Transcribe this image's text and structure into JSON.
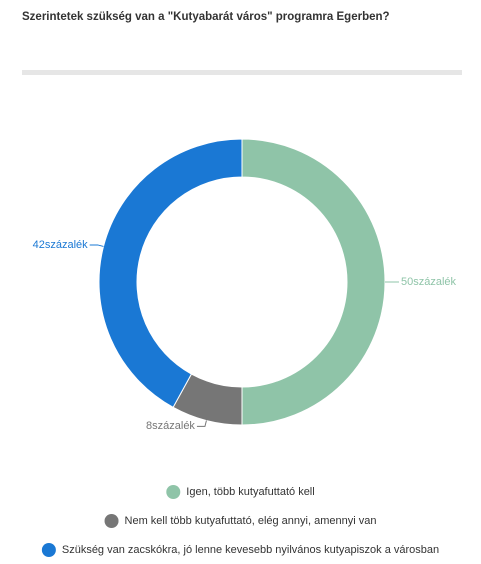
{
  "chart_data": {
    "type": "pie",
    "title": "Szerintetek szükség van a \"Kutyabarát város\" programra Egerben?",
    "categories": [
      "Igen, több kutyafuttató kell",
      "Nem kell több kutyafuttató, elég annyi, amennyi van",
      "Szükség van zacskókra, jó lenne kevesebb nyilvános kutyapiszok a városban"
    ],
    "values": [
      50,
      8,
      42
    ],
    "value_labels": [
      "50százalék",
      "8százalék",
      "42százalék"
    ],
    "colors": [
      "#8fc4a8",
      "#767676",
      "#1a78d4"
    ]
  }
}
